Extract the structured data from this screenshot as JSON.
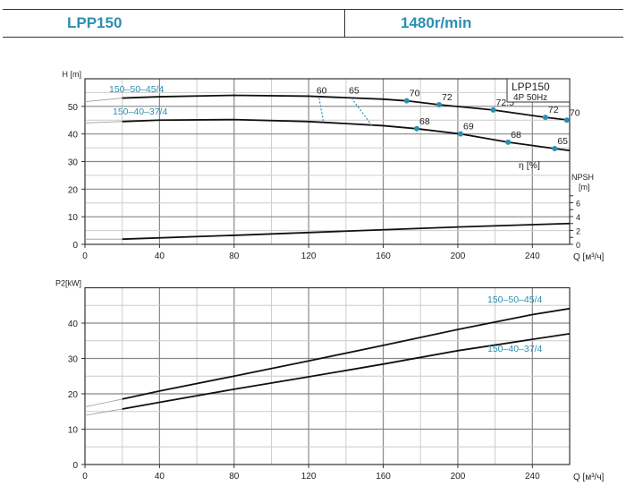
{
  "header": {
    "model": "LPP150",
    "speed": "1480r/min"
  },
  "chart_data": [
    {
      "type": "line",
      "title": "LPP150",
      "subtitle": "4P  50Hz",
      "ylabel": "H [m]",
      "xlabel": "Q [м³/ч]",
      "xlim": [
        0,
        260
      ],
      "ylim": [
        0,
        60
      ],
      "xticks": [
        0,
        40,
        80,
        120,
        160,
        200,
        240
      ],
      "yticks": [
        0,
        10,
        20,
        30,
        40,
        50
      ],
      "series": [
        {
          "name": "150–50–45/4",
          "x": [
            20,
            40,
            80,
            120,
            160,
            172.6,
            190,
            219,
            247,
            260
          ],
          "y": [
            53,
            53.5,
            54,
            53.7,
            52.6,
            52,
            50.6,
            48.7,
            46,
            45
          ],
          "extension": {
            "x": [
              0,
              20
            ],
            "y": [
              51.7,
              53
            ]
          }
        },
        {
          "name": "150–40–37/4",
          "x": [
            20,
            40,
            80,
            120,
            160,
            178,
            201.5,
            227,
            252,
            260
          ],
          "y": [
            44.5,
            45,
            45.2,
            44.5,
            43,
            41.9,
            40,
            37,
            34.7,
            34
          ],
          "extension": {
            "x": [
              0,
              20
            ],
            "y": [
              44,
              44.5
            ]
          }
        }
      ],
      "efficiency_label": "η [%]",
      "efficiency_points": [
        {
          "q": 172.6,
          "h": 52,
          "label": "70"
        },
        {
          "q": 190,
          "h": 50.6,
          "label": "72"
        },
        {
          "q": 219,
          "h": 48.7,
          "label": "72.5"
        },
        {
          "q": 247,
          "h": 46,
          "label": "72"
        },
        {
          "q": 258.5,
          "h": 45,
          "label": "70"
        },
        {
          "q": 178,
          "h": 41.9,
          "label": "68"
        },
        {
          "q": 201.5,
          "h": 40,
          "label": "69"
        },
        {
          "q": 227,
          "h": 37,
          "label": "68"
        },
        {
          "q": 252,
          "h": 34.7,
          "label": "65"
        }
      ],
      "iso_efficiency": [
        {
          "label": "60",
          "x": [
            125.6,
            128
          ],
          "y": [
            53,
            44
          ]
        },
        {
          "label": "65",
          "x": [
            143,
            154
          ],
          "y": [
            53,
            43
          ]
        }
      ],
      "npsh": {
        "label": "NPSH",
        "unit": "[m]",
        "ticks": [
          0,
          2,
          4,
          6
        ],
        "x": [
          20,
          80,
          140,
          200,
          260
        ],
        "y": [
          0.75,
          1.3,
          1.9,
          2.5,
          3.0
        ],
        "extension": {
          "x": [
            0,
            20
          ],
          "y": [
            0.75,
            0.75
          ]
        }
      }
    },
    {
      "type": "line",
      "ylabel": "P2[kW]",
      "xlabel": "Q [м³/ч]",
      "xlim": [
        0,
        260
      ],
      "ylim": [
        0,
        50
      ],
      "xticks": [
        0,
        40,
        80,
        120,
        160,
        200,
        240
      ],
      "yticks": [
        0,
        10,
        20,
        30,
        40
      ],
      "series": [
        {
          "name": "150–50–45/4",
          "x": [
            20,
            40,
            80,
            120,
            160,
            200,
            240,
            260
          ],
          "y": [
            18.5,
            20.8,
            25,
            29.3,
            33.7,
            38.2,
            42.4,
            44.1
          ],
          "extension": {
            "x": [
              0,
              20
            ],
            "y": [
              16.3,
              18.5
            ]
          }
        },
        {
          "name": "150–40–37/4",
          "x": [
            20,
            40,
            80,
            120,
            160,
            200,
            240,
            260
          ],
          "y": [
            15.7,
            17.6,
            21.3,
            24.8,
            28.4,
            32.2,
            35.4,
            37
          ],
          "extension": {
            "x": [
              0,
              20
            ],
            "y": [
              13.9,
              15.7
            ]
          }
        }
      ]
    }
  ],
  "colors": {
    "accent": "#2b8fb0",
    "curve": "#111111",
    "grid": "#999999"
  }
}
